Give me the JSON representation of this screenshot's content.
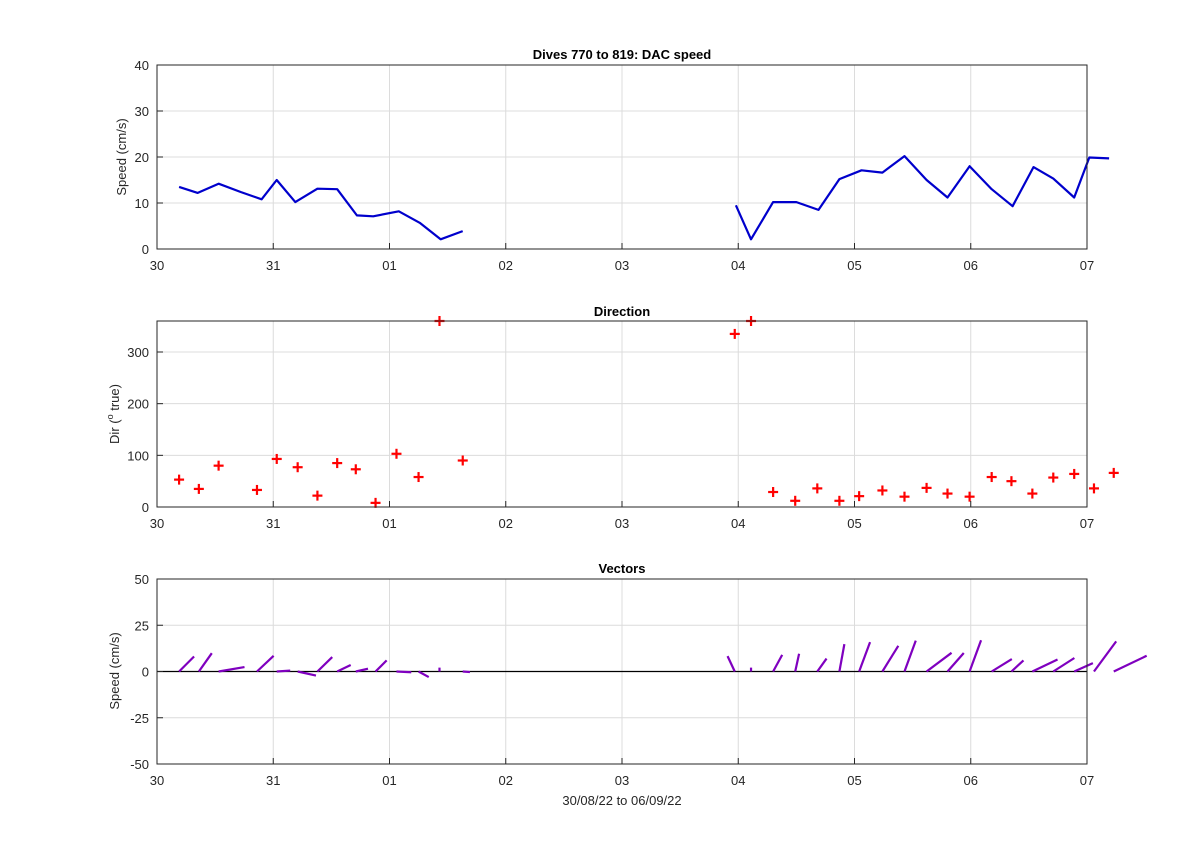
{
  "x_tick_labels": [
    "30",
    "31",
    "01",
    "02",
    "03",
    "04",
    "05",
    "06",
    "07"
  ],
  "xlabel": "30/08/22 to 06/09/22",
  "chart_data": [
    {
      "type": "line",
      "title": "Dives 770 to 819: DAC speed",
      "xlabel": "",
      "ylabel": "Speed (cm/s)",
      "xlim": [
        0,
        8
      ],
      "ylim": [
        0,
        40
      ],
      "yticks": [
        0,
        10,
        20,
        30,
        40
      ],
      "grid": true,
      "color": "#0000cc",
      "series": [
        {
          "x": [
            0.19,
            0.35,
            0.53,
            0.72,
            0.9,
            1.03,
            1.19,
            1.38,
            1.55,
            1.72,
            1.86,
            2.08,
            2.26,
            2.44,
            2.63
          ],
          "values": [
            13.5,
            12.2,
            14.2,
            12.4,
            10.8,
            15.0,
            10.2,
            13.1,
            13.0,
            7.3,
            7.1,
            8.2,
            5.7,
            2.1,
            3.9
          ]
        },
        {
          "x": [
            4.98,
            5.11,
            5.3,
            5.5,
            5.69,
            5.87,
            6.06,
            6.24,
            6.43,
            6.62,
            6.8,
            6.99,
            7.18,
            7.36,
            7.54,
            7.71,
            7.89,
            8.02,
            8.19
          ],
          "values": [
            9.5,
            2.1,
            10.2,
            10.2,
            8.5,
            15.2,
            17.1,
            16.6,
            20.2,
            15.0,
            11.2,
            18.0,
            13.0,
            9.3,
            17.8,
            15.3,
            11.2,
            19.9,
            19.7
          ]
        }
      ]
    },
    {
      "type": "scatter",
      "title": "Direction",
      "xlabel": "",
      "ylabel": "Dir (° true)",
      "ylabel_parts": {
        "pre": "Dir (",
        "sup": "o",
        "post": " true)"
      },
      "xlim": [
        0,
        8
      ],
      "ylim": [
        0,
        360
      ],
      "yticks": [
        0,
        100,
        200,
        300
      ],
      "grid": true,
      "marker": "+",
      "color": "#ff0000",
      "x": [
        0.19,
        0.36,
        0.53,
        0.86,
        1.03,
        1.21,
        1.38,
        1.55,
        1.71,
        1.88,
        2.06,
        2.25,
        2.43,
        2.63,
        4.97,
        5.11,
        5.3,
        5.49,
        5.68,
        5.87,
        6.04,
        6.24,
        6.43,
        6.62,
        6.8,
        6.99,
        7.18,
        7.35,
        7.53,
        7.71,
        7.89,
        8.06,
        8.23
      ],
      "y": [
        53,
        35,
        80,
        33,
        93,
        77,
        22,
        85,
        73,
        8,
        103,
        58,
        360,
        90,
        335,
        360,
        29,
        12,
        36,
        12,
        21,
        32,
        20,
        37,
        26,
        20,
        58,
        50,
        26,
        57,
        64,
        36,
        66
      ]
    },
    {
      "type": "vector",
      "title": "Vectors",
      "xlabel": "30/08/22 to 06/09/22",
      "ylabel": "Speed (cm/s)",
      "xlim": [
        0,
        8
      ],
      "ylim": [
        -50,
        50
      ],
      "yticks": [
        -50,
        -25,
        0,
        25,
        50
      ],
      "grid": true,
      "color": "#7f00bf",
      "x": [
        0.19,
        0.36,
        0.53,
        0.86,
        1.03,
        1.21,
        1.38,
        1.55,
        1.71,
        1.88,
        2.06,
        2.25,
        2.43,
        2.63,
        4.97,
        5.11,
        5.3,
        5.49,
        5.68,
        5.87,
        6.04,
        6.24,
        6.43,
        6.62,
        6.8,
        6.99,
        7.18,
        7.35,
        7.53,
        7.71,
        7.89,
        8.06,
        8.23
      ],
      "u": [
        8.1,
        7.0,
        14.0,
        9.0,
        7.3,
        9.9,
        8.0,
        7.3,
        6.6,
        6.0,
        8.0,
        5.5,
        0,
        3.9,
        -3.9,
        0,
        4.9,
        2.1,
        5.0,
        2.7,
        5.9,
        8.6,
        6.1,
        13.5,
        8.8,
        6.2,
        10.9,
        6.5,
        13.6,
        11.4,
        10.1,
        12.0,
        17.8
      ],
      "v": [
        8.1,
        9.9,
        2.4,
        8.5,
        0.5,
        -2.2,
        7.8,
        3.5,
        1.5,
        6.0,
        -0.4,
        -3.0,
        2.1,
        -0.3,
        8.3,
        2.1,
        9.0,
        9.6,
        7.0,
        14.8,
        15.9,
        13.9,
        16.7,
        10.1,
        10.0,
        16.9,
        6.7,
        6.0,
        6.5,
        7.3,
        4.5,
        16.3,
        8.5
      ]
    }
  ]
}
